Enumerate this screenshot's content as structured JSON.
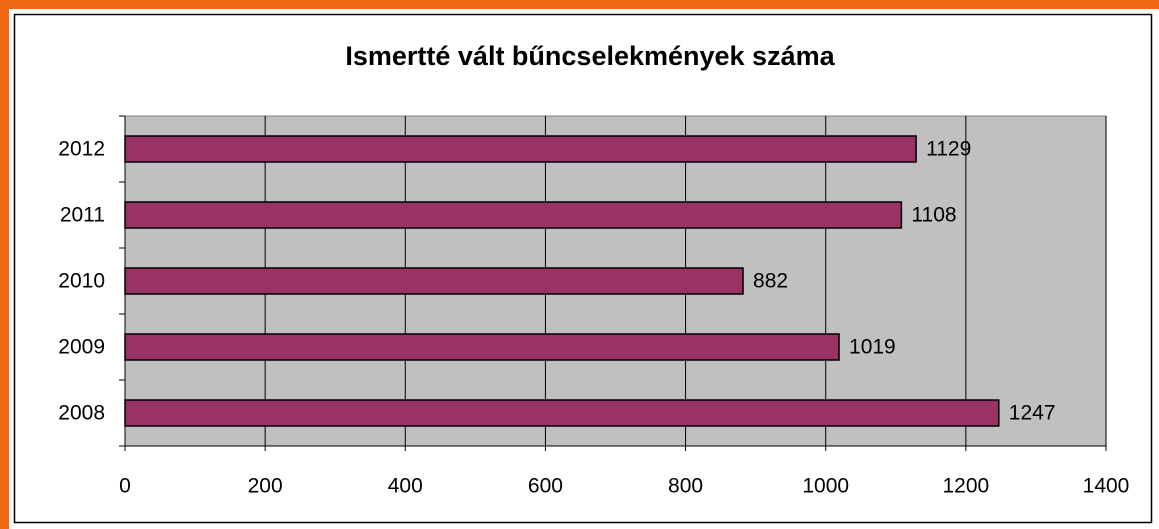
{
  "chart_data": {
    "type": "barh",
    "title": "Ismertté vált bűncselekmények száma",
    "categories": [
      "2012",
      "2011",
      "2010",
      "2009",
      "2008"
    ],
    "values": [
      1129,
      1108,
      882,
      1019,
      1247
    ],
    "color": "#993366",
    "xlim": [
      0,
      1400
    ],
    "xticks": [
      0,
      200,
      400,
      600,
      800,
      1000,
      1200,
      1400
    ],
    "grid": true
  }
}
